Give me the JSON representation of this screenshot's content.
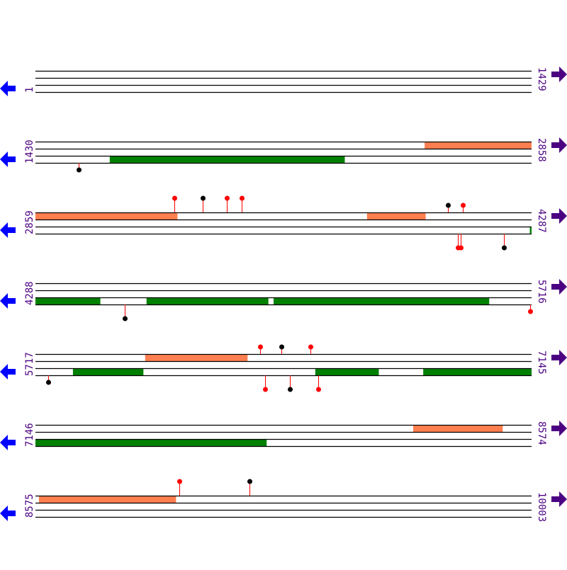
{
  "colors": {
    "track_line": "#000000",
    "orange_feature": "#FF7F50",
    "green_feature": "#008000",
    "stem": "#FF0000",
    "marker_red": "#FF0000",
    "marker_black": "#000000",
    "label": "#4B0082",
    "left_arrow": "#0000FF",
    "right_arrow": "#4B0082"
  },
  "icons": {
    "left": "arrow-left-icon",
    "right": "arrow-right-icon"
  },
  "rows": [
    {
      "start": "1",
      "end": "1429",
      "features": [],
      "markers": []
    },
    {
      "start": "1430",
      "end": "2858",
      "features": [
        {
          "track": 0,
          "from": 2551,
          "to": 2858,
          "color": "orange"
        },
        {
          "track": 2,
          "from": 1644,
          "to": 2320,
          "color": "green"
        }
      ],
      "markers": [
        {
          "pos": 1555,
          "side": "below",
          "level": 1,
          "color": "black"
        }
      ]
    },
    {
      "start": "2859",
      "end": "4287",
      "features": [
        {
          "track": 0,
          "from": 2859,
          "to": 3267,
          "color": "orange"
        },
        {
          "track": 0,
          "from": 3814,
          "to": 3982,
          "color": "orange"
        },
        {
          "track": 2,
          "from": 4283,
          "to": 4287,
          "color": "green"
        }
      ],
      "markers": [
        {
          "pos": 3259,
          "side": "above",
          "level": 2,
          "color": "red"
        },
        {
          "pos": 3341,
          "side": "above",
          "level": 2,
          "color": "black"
        },
        {
          "pos": 3410,
          "side": "above",
          "level": 2,
          "color": "red"
        },
        {
          "pos": 3453,
          "side": "above",
          "level": 2,
          "color": "red"
        },
        {
          "pos": 4047,
          "side": "above",
          "level": 1,
          "color": "black"
        },
        {
          "pos": 4090,
          "side": "above",
          "level": 1,
          "color": "red"
        },
        {
          "pos": 4076,
          "side": "below",
          "level": 2,
          "color": "red"
        },
        {
          "pos": 4084,
          "side": "below",
          "level": 2,
          "color": "red"
        },
        {
          "pos": 4208,
          "side": "below",
          "level": 2,
          "color": "black"
        }
      ]
    },
    {
      "start": "4288",
      "end": "5716",
      "features": [
        {
          "track": 2,
          "from": 4288,
          "to": 4474,
          "color": "green"
        },
        {
          "track": 2,
          "from": 4608,
          "to": 4958,
          "color": "green"
        },
        {
          "track": 2,
          "from": 4974,
          "to": 5594,
          "color": "green"
        }
      ],
      "markers": [
        {
          "pos": 4545,
          "side": "below",
          "level": 2,
          "color": "black"
        },
        {
          "pos": 5713,
          "side": "below",
          "level": 1,
          "color": "red"
        }
      ]
    },
    {
      "start": "5717",
      "end": "7145",
      "features": [
        {
          "track": 0,
          "from": 6033,
          "to": 6327,
          "color": "orange"
        },
        {
          "track": 2,
          "from": 5825,
          "to": 6027,
          "color": "green"
        },
        {
          "track": 2,
          "from": 6523,
          "to": 6705,
          "color": "green"
        },
        {
          "track": 2,
          "from": 6834,
          "to": 7145,
          "color": "green"
        }
      ],
      "markers": [
        {
          "pos": 6364,
          "side": "above",
          "level": 1,
          "color": "red"
        },
        {
          "pos": 6425,
          "side": "above",
          "level": 1,
          "color": "black"
        },
        {
          "pos": 6509,
          "side": "above",
          "level": 1,
          "color": "red"
        },
        {
          "pos": 5754,
          "side": "below",
          "level": 1,
          "color": "black"
        },
        {
          "pos": 6378,
          "side": "below",
          "level": 2,
          "color": "red"
        },
        {
          "pos": 6450,
          "side": "below",
          "level": 2,
          "color": "black"
        },
        {
          "pos": 6532,
          "side": "below",
          "level": 2,
          "color": "red"
        }
      ]
    },
    {
      "start": "7146",
      "end": "8574",
      "features": [
        {
          "track": 0,
          "from": 8234,
          "to": 8491,
          "color": "orange"
        },
        {
          "track": 2,
          "from": 7146,
          "to": 7811,
          "color": "green"
        }
      ],
      "markers": []
    },
    {
      "start": "8575",
      "end": "10003",
      "features": [
        {
          "track": 0,
          "from": 8585,
          "to": 8979,
          "color": "orange"
        }
      ],
      "markers": [
        {
          "pos": 8989,
          "side": "above",
          "level": 2,
          "color": "red"
        },
        {
          "pos": 9191,
          "side": "above",
          "level": 2,
          "color": "black"
        }
      ]
    }
  ]
}
